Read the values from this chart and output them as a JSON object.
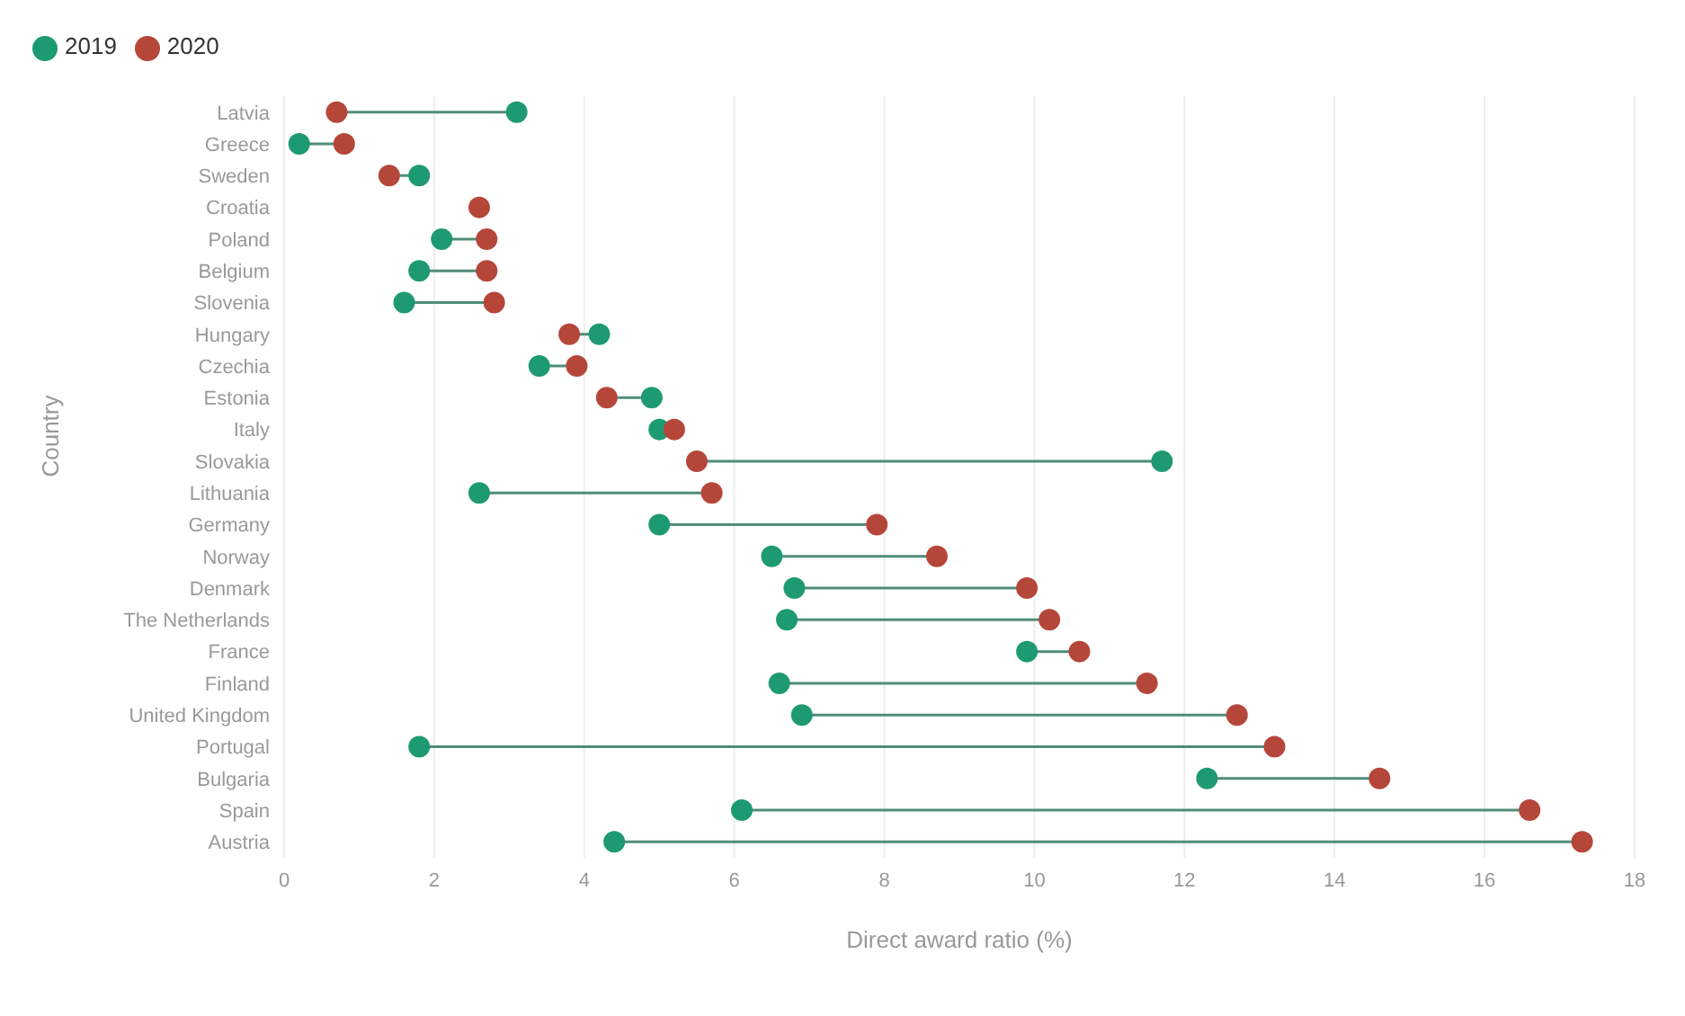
{
  "chart_data": {
    "type": "scatter",
    "orientation": "horizontal",
    "xlabel": "Direct award ratio (%)",
    "ylabel": "Country",
    "categories": [
      "Latvia",
      "Greece",
      "Sweden",
      "Croatia",
      "Poland",
      "Belgium",
      "Slovenia",
      "Hungary",
      "Czechia",
      "Estonia",
      "Italy",
      "Slovakia",
      "Lithuania",
      "Germany",
      "Norway",
      "Denmark",
      "The Netherlands",
      "France",
      "Finland",
      "United Kingdom",
      "Portugal",
      "Bulgaria",
      "Spain",
      "Austria"
    ],
    "series": [
      {
        "name": "2019",
        "color": "#1e9a72",
        "values": [
          3.1,
          0.2,
          1.8,
          null,
          2.1,
          1.8,
          1.6,
          4.2,
          3.4,
          4.9,
          5.0,
          11.7,
          2.6,
          5.0,
          6.5,
          6.8,
          6.7,
          9.9,
          6.6,
          6.9,
          1.8,
          12.3,
          6.1,
          4.4
        ]
      },
      {
        "name": "2020",
        "color": "#b5473a",
        "values": [
          0.7,
          0.8,
          1.4,
          2.6,
          2.7,
          2.7,
          2.8,
          3.8,
          3.9,
          4.3,
          5.2,
          5.5,
          5.7,
          7.9,
          8.7,
          9.9,
          10.2,
          10.6,
          11.5,
          12.7,
          13.2,
          14.6,
          16.6,
          17.3
        ]
      }
    ],
    "xlim": [
      0,
      18
    ],
    "xticks": [
      0,
      2,
      4,
      6,
      8,
      10,
      12,
      14,
      16,
      18
    ],
    "grid": "x",
    "legend": "top left",
    "marker": "circle"
  }
}
